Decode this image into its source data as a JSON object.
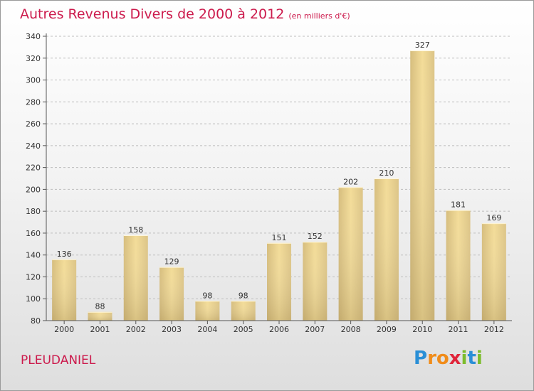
{
  "title": "Autres Revenus Divers de 2000 à 2012",
  "subtitle": "(en milliers d'€)",
  "commune": "PLEUDANIEL",
  "logo": {
    "text": "Proxiti",
    "letters": [
      {
        "ch": "P",
        "color": "#2a8fd6"
      },
      {
        "ch": "r",
        "color": "#f08c1a"
      },
      {
        "ch": "o",
        "color": "#f08c1a"
      },
      {
        "ch": "x",
        "color": "#e0253a"
      },
      {
        "ch": "i",
        "color": "#7cbc2c"
      },
      {
        "ch": "t",
        "color": "#2a8fd6"
      },
      {
        "ch": "i",
        "color": "#7cbc2c"
      }
    ]
  },
  "colors": {
    "accent": "#cc1a4c",
    "bar_light": "#f3dc98",
    "bar_dark": "#c7ad6c",
    "grid": "#bdbdbd"
  },
  "chart_data": {
    "type": "bar",
    "title": "Autres Revenus Divers de 2000 à 2012",
    "subtitle": "(en milliers d'€)",
    "categories": [
      "2000",
      "2001",
      "2002",
      "2003",
      "2004",
      "2005",
      "2006",
      "2007",
      "2008",
      "2009",
      "2010",
      "2011",
      "2012"
    ],
    "values": [
      136,
      88,
      158,
      129,
      98,
      98,
      151,
      152,
      202,
      210,
      327,
      181,
      169
    ],
    "ylim": [
      80,
      340
    ],
    "yticks": [
      80,
      100,
      120,
      140,
      160,
      180,
      200,
      220,
      240,
      260,
      280,
      300,
      320,
      340
    ],
    "grid": true,
    "data_labels": true
  }
}
